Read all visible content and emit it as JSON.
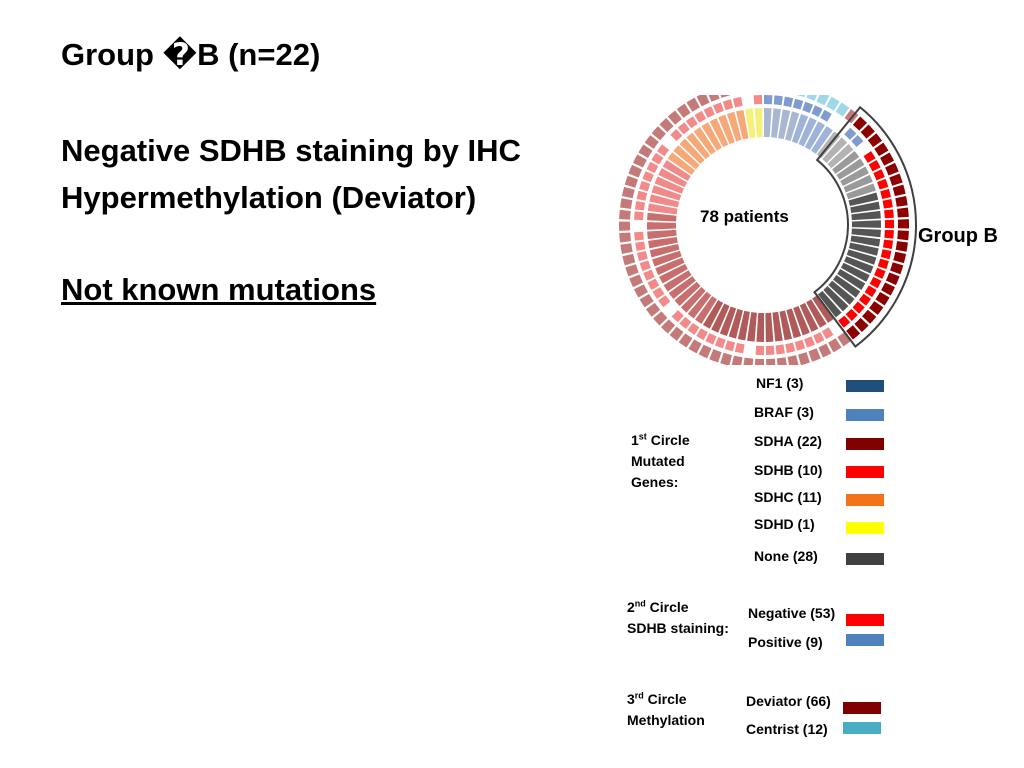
{
  "slide": {
    "title": "Group �B (n=22)",
    "subtitle_line1": "Negative SDHB staining  by IHC",
    "subtitle_line2": "Hypermethylation (Deviator)",
    "note": "Not known mutations"
  },
  "diagram": {
    "center_text": "78 patients",
    "group_label": "Group B"
  },
  "legend": {
    "circle1": {
      "title_ord": "1",
      "title_sup": "st",
      "title_rest": " Circle",
      "line2": "Mutated",
      "line3": "Genes:",
      "items": [
        {
          "label": "NF1 (3)",
          "color": "#1f4e79"
        },
        {
          "label": "BRAF (3)",
          "color": "#4f81bd"
        },
        {
          "label": "SDHA (22)",
          "color": "#800000"
        },
        {
          "label": "SDHB (10)",
          "color": "#ff0000"
        },
        {
          "label": "SDHC (11)",
          "color": "#f4731a"
        },
        {
          "label": "SDHD (1)",
          "color": "#ffff00"
        },
        {
          "label": "None (28)",
          "color": "#404040"
        }
      ]
    },
    "circle2": {
      "title_ord": "2",
      "title_sup": "nd",
      "title_rest": " Circle",
      "line2": "SDHB staining:",
      "items": [
        {
          "label": "Negative (53)",
          "color": "#ff0000"
        },
        {
          "label": "Positive (9)",
          "color": "#4f81bd"
        }
      ]
    },
    "circle3": {
      "title_ord": "3",
      "title_sup": "rd",
      "title_rest": " Circle",
      "line2": "Methylation",
      "items": [
        {
          "label": "Deviator (66)",
          "color": "#800000"
        },
        {
          "label": "Centrist (12)",
          "color": "#4bacc6"
        }
      ]
    }
  }
}
